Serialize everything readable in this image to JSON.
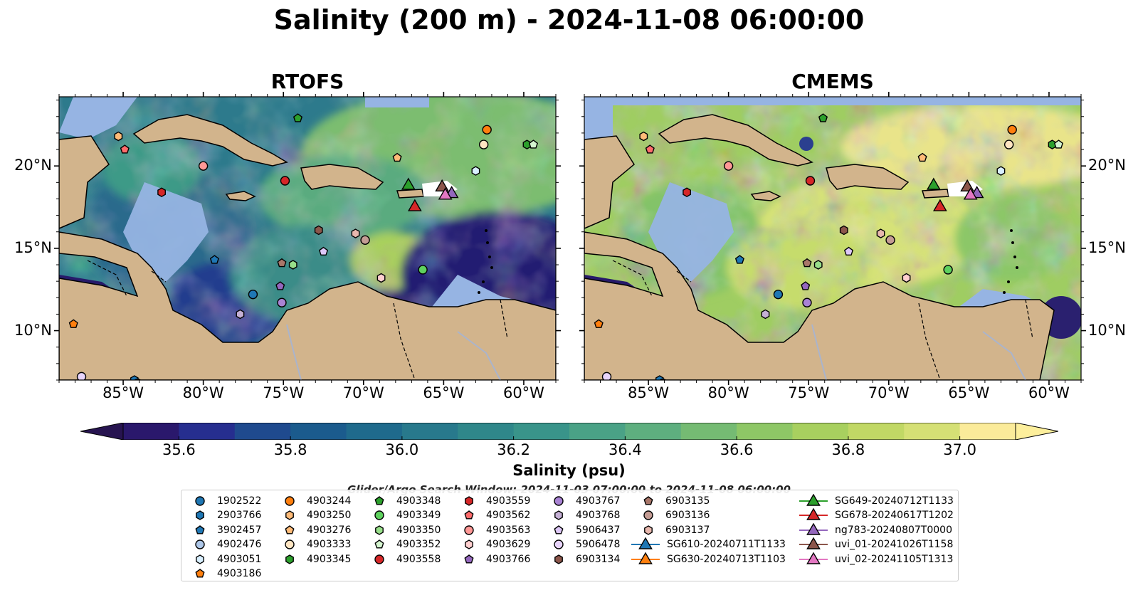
{
  "title": "Salinity (200 m) - 2024-11-08 06:00:00",
  "panels": [
    {
      "id": "rtofs",
      "title": "RTOFS"
    },
    {
      "id": "cmems",
      "title": "CMEMS"
    }
  ],
  "map_extent": {
    "lon": [
      -89,
      -58
    ],
    "lat": [
      7,
      24.2
    ]
  },
  "lon_ticks": [
    {
      "value": -85,
      "label": "85°W"
    },
    {
      "value": -80,
      "label": "80°W"
    },
    {
      "value": -75,
      "label": "75°W"
    },
    {
      "value": -70,
      "label": "70°W"
    },
    {
      "value": -65,
      "label": "65°W"
    },
    {
      "value": -60,
      "label": "60°W"
    }
  ],
  "lat_ticks": [
    {
      "value": 20,
      "label": "20°N"
    },
    {
      "value": 15,
      "label": "15°N"
    },
    {
      "value": 10,
      "label": "10°N"
    }
  ],
  "colorbar": {
    "title": "Salinity (psu)",
    "min": 35.5,
    "max": 37.1,
    "levels": [
      35.5,
      35.6,
      35.7,
      35.8,
      35.9,
      36.0,
      36.1,
      36.2,
      36.3,
      36.4,
      36.5,
      36.6,
      36.7,
      36.8,
      36.9,
      37.0,
      37.1
    ],
    "colors": [
      "#2a186c",
      "#262e8f",
      "#1f4a8e",
      "#1b5b8d",
      "#1f6a8c",
      "#28798c",
      "#2f878a",
      "#39948a",
      "#4aa286",
      "#5eaf7f",
      "#75bb73",
      "#8ec766",
      "#a8d05f",
      "#c1d865",
      "#d5e075",
      "#fbeb9a"
    ],
    "extend_low": "#271450",
    "extend_high": "#fdef9c",
    "ticks": [
      {
        "value": 35.6,
        "label": "35.6"
      },
      {
        "value": 35.8,
        "label": "35.8"
      },
      {
        "value": 36.0,
        "label": "36.0"
      },
      {
        "value": 36.2,
        "label": "36.2"
      },
      {
        "value": 36.4,
        "label": "36.4"
      },
      {
        "value": 36.6,
        "label": "36.6"
      },
      {
        "value": 36.8,
        "label": "36.8"
      },
      {
        "value": 37.0,
        "label": "37.0"
      }
    ]
  },
  "colors": {
    "land": "#d2b48c",
    "shallow": "#96b4e3",
    "coast": "#000000",
    "river": "#aab4cc"
  },
  "search_window": "Glider/Argo Search Window: 2024-11-03 07:00:00 to 2024-11-08 06:00:00",
  "floats": [
    {
      "id": "1902522",
      "marker": "circle",
      "color": "#1f77b4",
      "lon": -76.9,
      "lat": 12.2
    },
    {
      "id": "2903766",
      "marker": "hexagon",
      "color": "#1f77b4",
      "lon": -84.3,
      "lat": 7.0
    },
    {
      "id": "3902457",
      "marker": "pentagon",
      "color": "#1f77b4",
      "lon": -79.3,
      "lat": 14.3
    },
    {
      "id": "4902476",
      "marker": "circle",
      "color": "#aec7e8",
      "lon": -84.1,
      "lat": 6.8
    },
    {
      "id": "4903051",
      "marker": "hexagon",
      "color": "#d9f0ff",
      "lon": -63.0,
      "lat": 19.7
    },
    {
      "id": "4903186",
      "marker": "pentagon",
      "color": "#ff7f0e",
      "lon": -88.1,
      "lat": 10.4
    },
    {
      "id": "4903244",
      "marker": "circle",
      "color": "#ff7f0e",
      "lon": -62.3,
      "lat": 22.2
    },
    {
      "id": "4903250",
      "marker": "hexagon",
      "color": "#ffbb78",
      "lon": -85.3,
      "lat": 21.8
    },
    {
      "id": "4903276",
      "marker": "pentagon",
      "color": "#ffbb78",
      "lon": -67.9,
      "lat": 20.5
    },
    {
      "id": "4903333",
      "marker": "circle",
      "color": "#ffe5c2",
      "lon": -62.5,
      "lat": 21.3
    },
    {
      "id": "4903345",
      "marker": "hexagon",
      "color": "#2ca02c",
      "lon": -59.8,
      "lat": 21.3
    },
    {
      "id": "4903348",
      "marker": "pentagon",
      "color": "#2ca02c",
      "lon": -74.1,
      "lat": 22.9
    },
    {
      "id": "4903349",
      "marker": "circle",
      "color": "#5ed15e",
      "lon": -66.3,
      "lat": 13.7
    },
    {
      "id": "4903350",
      "marker": "hexagon",
      "color": "#98df8a",
      "lon": -74.4,
      "lat": 14.0
    },
    {
      "id": "4903352",
      "marker": "pentagon",
      "color": "#d5f5d0",
      "lon": -59.4,
      "lat": 21.3
    },
    {
      "id": "4903558",
      "marker": "circle",
      "color": "#d62728",
      "lon": -74.9,
      "lat": 19.1
    },
    {
      "id": "4903559",
      "marker": "hexagon",
      "color": "#d62728",
      "lon": -82.6,
      "lat": 18.4
    },
    {
      "id": "4903562",
      "marker": "pentagon",
      "color": "#ff6b6b",
      "lon": -84.9,
      "lat": 21.0
    },
    {
      "id": "4903563",
      "marker": "circle",
      "color": "#ff9896",
      "lon": -80.0,
      "lat": 20.0
    },
    {
      "id": "4903629",
      "marker": "hexagon",
      "color": "#ffd0d0",
      "lon": -68.9,
      "lat": 13.2
    },
    {
      "id": "4903766",
      "marker": "pentagon",
      "color": "#9467bd",
      "lon": -75.2,
      "lat": 12.7
    },
    {
      "id": "4903767",
      "marker": "circle",
      "color": "#a983d4",
      "lon": -75.1,
      "lat": 11.7
    },
    {
      "id": "4903768",
      "marker": "hexagon",
      "color": "#c5b0d5",
      "lon": -77.7,
      "lat": 11.0
    },
    {
      "id": "5906437",
      "marker": "pentagon",
      "color": "#ddc7f7",
      "lon": -72.5,
      "lat": 14.8
    },
    {
      "id": "5906478",
      "marker": "circle",
      "color": "#e8d4fb",
      "lon": -87.6,
      "lat": 7.2
    },
    {
      "id": "6903134",
      "marker": "hexagon",
      "color": "#8c564b",
      "lon": -72.8,
      "lat": 16.1
    },
    {
      "id": "6903135",
      "marker": "pentagon",
      "color": "#a9776a",
      "lon": -75.1,
      "lat": 14.1
    },
    {
      "id": "6903136",
      "marker": "circle",
      "color": "#c49c94",
      "lon": -69.9,
      "lat": 15.5
    },
    {
      "id": "6903137",
      "marker": "hexagon",
      "color": "#e8b8ae",
      "lon": -70.5,
      "lat": 15.9
    }
  ],
  "gliders": [
    {
      "id": "SG610-20240711T1133",
      "color": "#1f77b4",
      "lon": null,
      "lat": null
    },
    {
      "id": "SG630-20240713T1103",
      "color": "#ff7f0e",
      "lon": null,
      "lat": null
    },
    {
      "id": "SG649-20240712T1133",
      "color": "#2ca02c",
      "lon": -67.2,
      "lat": 18.8
    },
    {
      "id": "SG678-20240617T1202",
      "color": "#d62728",
      "lon": -66.8,
      "lat": 17.5
    },
    {
      "id": "ng783-20240807T0000",
      "color": "#9467bd",
      "lon": -64.5,
      "lat": 18.3
    },
    {
      "id": "uvi_01-20241026T1158",
      "color": "#8c564b",
      "lon": -65.1,
      "lat": 18.7
    },
    {
      "id": "uvi_02-20241105T1313",
      "color": "#e377c2",
      "lon": -64.9,
      "lat": 18.2
    }
  ]
}
